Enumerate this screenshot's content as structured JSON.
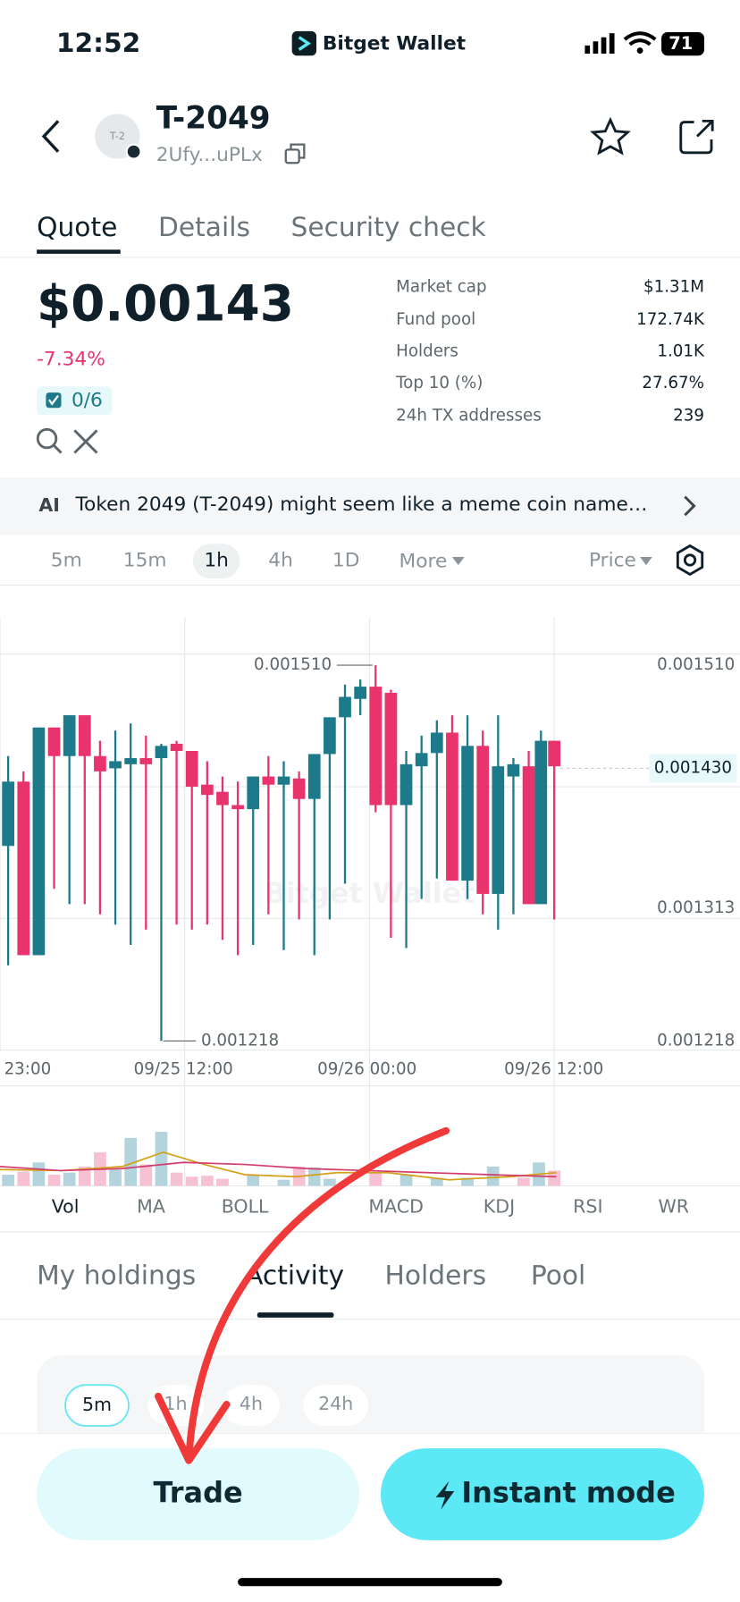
{
  "status_bar": {
    "time": "12:52",
    "app": "Bitget Wallet",
    "battery": "71"
  },
  "header": {
    "avatar": "T-2",
    "token": "T-2049",
    "address": "2Ufy...uPLx"
  },
  "tabs": [
    "Quote",
    "Details",
    "Security check"
  ],
  "quote": {
    "price": "$0.00143",
    "change": "-7.34%",
    "security": "0/6",
    "stats": [
      {
        "label": "Market cap",
        "value": "$1.31M"
      },
      {
        "label": "Fund pool",
        "value": "172.74K"
      },
      {
        "label": "Holders",
        "value": "1.01K"
      },
      {
        "label": "Top 10 (%)",
        "value": "27.67%"
      },
      {
        "label": "24h TX addresses",
        "value": "239"
      }
    ]
  },
  "ai_summary": {
    "badge": "AI",
    "text": "Token 2049 (T-2049) might seem like a meme coin name…"
  },
  "intervals": [
    "5m",
    "15m",
    "1h",
    "4h",
    "1D",
    "More"
  ],
  "price_mode": "Price",
  "chart": {
    "axis_labels": [
      "0.001510",
      "0.001313",
      "0.001218"
    ],
    "current": "0.001430",
    "high": "0.001510",
    "low": "0.001218",
    "x_labels": [
      "23:00",
      "09/25 12:00",
      "09/26 00:00",
      "09/26 12:00"
    ],
    "watermark": "Bitget Wallet"
  },
  "indicators": [
    "Vol",
    "MA",
    "BOLL",
    "MACD",
    "KDJ",
    "RSI",
    "WR"
  ],
  "sections": [
    "My holdings",
    "Activity",
    "Holders",
    "Pool"
  ],
  "time_filters": [
    "5m",
    "1h",
    "4h",
    "24h"
  ],
  "buttons": {
    "trade": "Trade",
    "instant": "Instant mode"
  }
}
